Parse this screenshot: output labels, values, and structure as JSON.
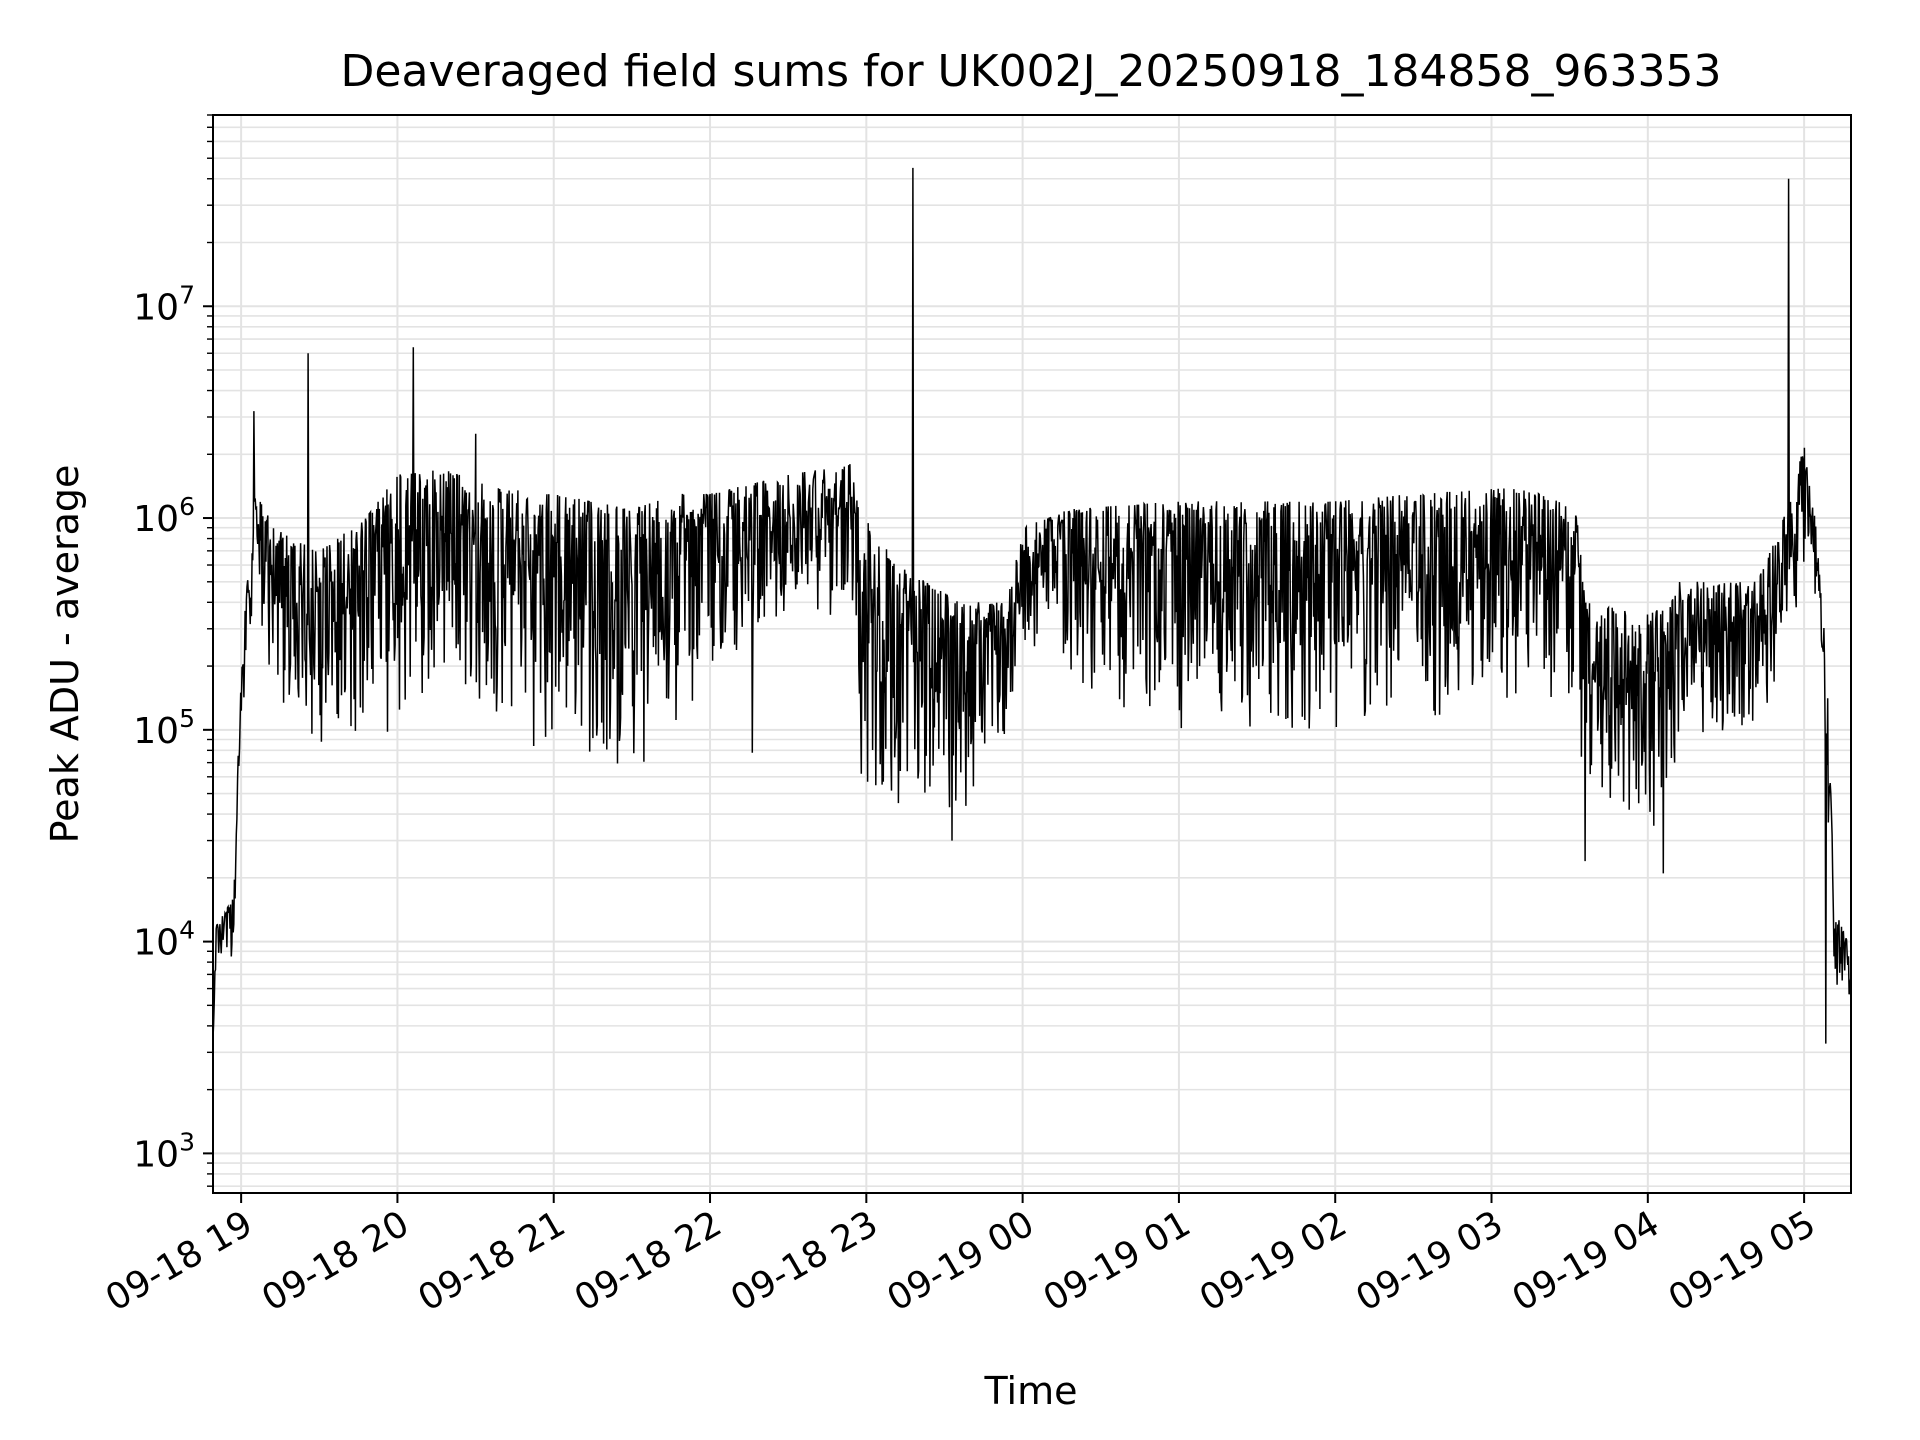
{
  "chart_data": {
    "type": "line",
    "title": "Deaveraged field sums for UK002J_20250918_184858_963353",
    "xlabel": "Time",
    "ylabel": "Peak ADU - average",
    "yscale": "log",
    "ylim": [
      650,
      80000000
    ],
    "xlim_hours": [
      -0.18,
      10.3
    ],
    "x_unit": "hours after 09-18 19:00",
    "grid": true,
    "line_color": "#000000",
    "grid_color": "#e3e3e3",
    "x_ticks": [
      {
        "label": "09-18 19",
        "hour": 0
      },
      {
        "label": "09-18 20",
        "hour": 1
      },
      {
        "label": "09-18 21",
        "hour": 2
      },
      {
        "label": "09-18 22",
        "hour": 3
      },
      {
        "label": "09-18 23",
        "hour": 4
      },
      {
        "label": "09-19 00",
        "hour": 5
      },
      {
        "label": "09-19 01",
        "hour": 6
      },
      {
        "label": "09-19 02",
        "hour": 7
      },
      {
        "label": "09-19 03",
        "hour": 8
      },
      {
        "label": "09-19 04",
        "hour": 9
      },
      {
        "label": "09-19 05",
        "hour": 10
      }
    ],
    "y_ticks": [
      {
        "base": "10",
        "exp": "3",
        "value": 1000
      },
      {
        "base": "10",
        "exp": "4",
        "value": 10000
      },
      {
        "base": "10",
        "exp": "5",
        "value": 100000
      },
      {
        "base": "10",
        "exp": "6",
        "value": 1000000
      },
      {
        "base": "10",
        "exp": "7",
        "value": 10000000
      }
    ],
    "series": [
      {
        "name": "Peak ADU - average",
        "envelope": [
          {
            "hour": -0.18,
            "low": 3500,
            "high": 3500
          },
          {
            "hour": -0.16,
            "low": 7500,
            "high": 12000
          },
          {
            "hour": -0.05,
            "low": 8000,
            "high": 16000
          },
          {
            "hour": 0.0,
            "low": 60000,
            "high": 200000
          },
          {
            "hour": 0.05,
            "low": 300000,
            "high": 700000
          },
          {
            "hour": 0.1,
            "low": 400000,
            "high": 1500000
          },
          {
            "hour": 0.2,
            "low": 150000,
            "high": 900000
          },
          {
            "hour": 0.5,
            "low": 80000,
            "high": 700000
          },
          {
            "hour": 0.8,
            "low": 90000,
            "high": 1000000
          },
          {
            "hour": 1.0,
            "low": 100000,
            "high": 1600000
          },
          {
            "hour": 1.3,
            "low": 150000,
            "high": 1700000
          },
          {
            "hour": 1.6,
            "low": 100000,
            "high": 1400000
          },
          {
            "hour": 2.0,
            "low": 70000,
            "high": 1300000
          },
          {
            "hour": 2.5,
            "low": 60000,
            "high": 1100000
          },
          {
            "hour": 2.8,
            "low": 90000,
            "high": 1300000
          },
          {
            "hour": 3.0,
            "low": 200000,
            "high": 1300000
          },
          {
            "hour": 3.5,
            "low": 300000,
            "high": 1600000
          },
          {
            "hour": 3.9,
            "low": 300000,
            "high": 1800000
          },
          {
            "hour": 3.95,
            "low": 60000,
            "high": 1100000
          },
          {
            "hour": 4.2,
            "low": 45000,
            "high": 600000
          },
          {
            "hour": 4.6,
            "low": 40000,
            "high": 400000
          },
          {
            "hour": 4.9,
            "low": 70000,
            "high": 400000
          },
          {
            "hour": 5.0,
            "low": 250000,
            "high": 900000
          },
          {
            "hour": 5.3,
            "low": 150000,
            "high": 1100000
          },
          {
            "hour": 6.0,
            "low": 100000,
            "high": 1200000
          },
          {
            "hour": 7.0,
            "low": 100000,
            "high": 1200000
          },
          {
            "hour": 7.5,
            "low": 100000,
            "high": 1300000
          },
          {
            "hour": 8.2,
            "low": 150000,
            "high": 1400000
          },
          {
            "hour": 8.55,
            "low": 120000,
            "high": 1100000
          },
          {
            "hour": 8.6,
            "low": 40000,
            "high": 400000
          },
          {
            "hour": 9.0,
            "low": 30000,
            "high": 350000
          },
          {
            "hour": 9.15,
            "low": 45000,
            "high": 400000
          },
          {
            "hour": 9.2,
            "low": 100000,
            "high": 500000
          },
          {
            "hour": 9.7,
            "low": 90000,
            "high": 500000
          },
          {
            "hour": 9.85,
            "low": 150000,
            "high": 900000
          },
          {
            "hour": 10.0,
            "low": 600000,
            "high": 2200000
          },
          {
            "hour": 10.1,
            "low": 300000,
            "high": 700000
          },
          {
            "hour": 10.15,
            "low": 40000,
            "high": 150000
          },
          {
            "hour": 10.2,
            "low": 6000,
            "high": 14000
          },
          {
            "hour": 10.3,
            "low": 5000,
            "high": 9000
          }
        ],
        "spikes": [
          {
            "hour": 0.08,
            "value": 3200000
          },
          {
            "hour": 0.43,
            "value": 6000000
          },
          {
            "hour": 1.1,
            "value": 6400000
          },
          {
            "hour": 1.5,
            "value": 2500000
          },
          {
            "hour": 4.3,
            "value": 45000000
          },
          {
            "hour": 9.9,
            "value": 40000000
          }
        ],
        "dips": [
          {
            "hour": 3.27,
            "value": 78000
          },
          {
            "hour": 4.55,
            "value": 30000
          },
          {
            "hour": 8.6,
            "value": 24000
          },
          {
            "hour": 9.1,
            "value": 21000
          },
          {
            "hour": 10.14,
            "value": 3300
          }
        ]
      }
    ]
  }
}
